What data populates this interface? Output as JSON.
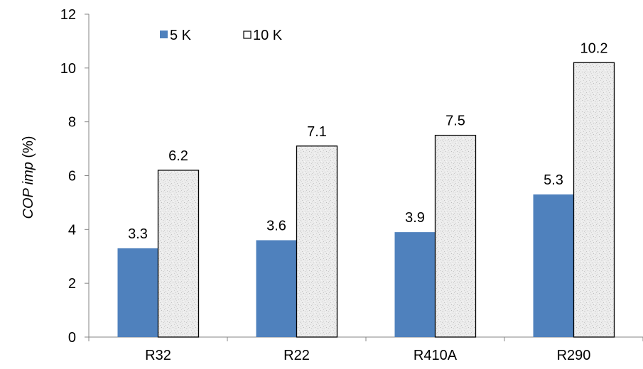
{
  "chart_data": {
    "type": "bar",
    "categories": [
      "R32",
      "R22",
      "R410A",
      "R290"
    ],
    "series": [
      {
        "name": "5 K",
        "values": [
          3.3,
          3.6,
          3.9,
          5.3
        ],
        "labels": [
          "3.3",
          "3.6",
          "3.9",
          "5.3"
        ],
        "color": "#4f81bd",
        "fill": "solid"
      },
      {
        "name": "10 K",
        "values": [
          6.2,
          7.1,
          7.5,
          10.2
        ],
        "labels": [
          "6.2",
          "7.1",
          "7.5",
          "10.2"
        ],
        "color": "#e9e9e9",
        "fill": "textured"
      }
    ],
    "title": "",
    "xlabel": "",
    "ylabel": "COP imp (%)",
    "ylabel_parts": {
      "main": "COP imp",
      "unit": " (%)"
    },
    "ylim": [
      0,
      12
    ],
    "yticks": [
      "0",
      "2",
      "4",
      "6",
      "8",
      "10",
      "12"
    ],
    "grid": false,
    "legend_position": "top-left"
  }
}
